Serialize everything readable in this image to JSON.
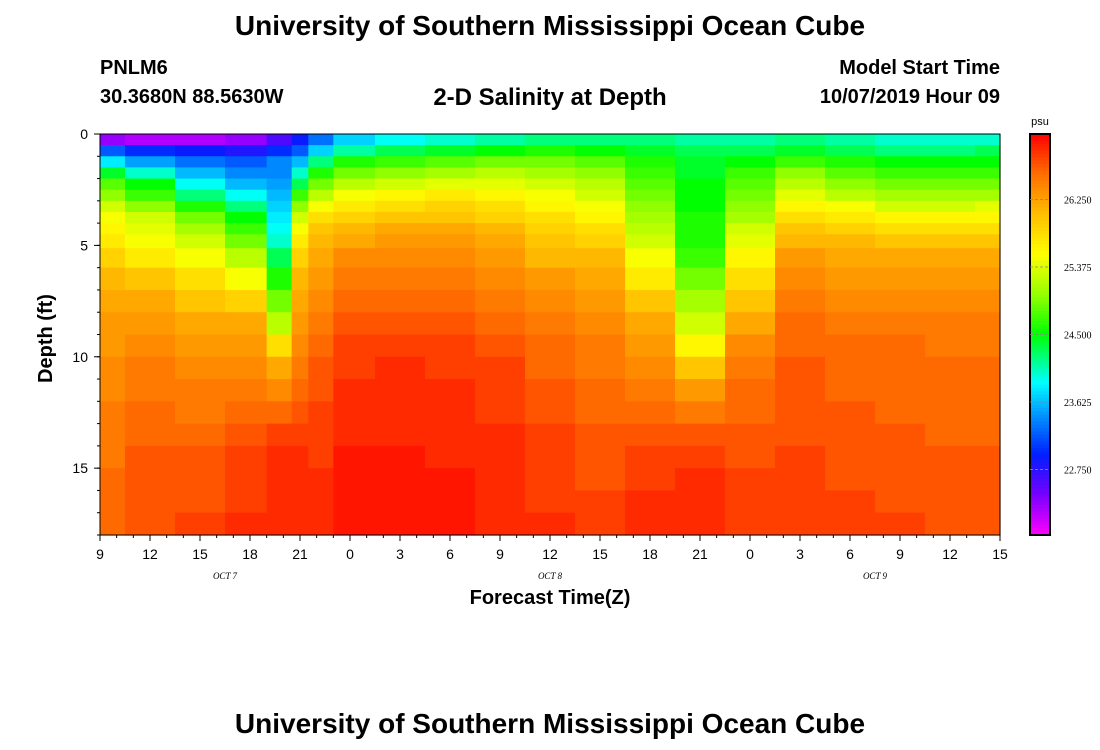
{
  "header": {
    "title_top": "University of Southern Mississippi Ocean Cube",
    "station_id": "PNLM6",
    "coordinates": "30.3680N 88.5630W",
    "plot_title": "2-D Salinity at Depth",
    "model_start_label": "Model Start Time",
    "model_start_value": "10/07/2019 Hour 09",
    "title_bottom": "University of Southern Mississippi Ocean Cube"
  },
  "chart_data": {
    "type": "heatmap",
    "title": "2-D Salinity at Depth",
    "xlabel": "Forecast Time(Z)",
    "ylabel": "Depth (ft)",
    "x_tick_labels": [
      "9",
      "12",
      "15",
      "18",
      "21",
      "0",
      "3",
      "6",
      "9",
      "12",
      "15",
      "18",
      "21",
      "0",
      "3",
      "6",
      "9",
      "12",
      "15"
    ],
    "x_range_hours": [
      0,
      54
    ],
    "x_tick_step_hours": 3,
    "date_labels": [
      {
        "text": "OCT 7",
        "hour": 7.5
      },
      {
        "text": "OCT 8",
        "hour": 27
      },
      {
        "text": "OCT 9",
        "hour": 46.5
      }
    ],
    "y_tick_labels": [
      "0",
      "5",
      "10",
      "15"
    ],
    "y_tick_values": [
      0,
      5,
      10,
      15
    ],
    "ylim": [
      0,
      18
    ],
    "colorbar": {
      "unit": "psu",
      "min": 21.9,
      "max": 27.1,
      "tick_values": [
        22.75,
        23.625,
        24.5,
        25.375,
        26.25
      ],
      "tick_labels": [
        "22.750",
        "23.625",
        "24.500",
        "25.375",
        "26.250"
      ]
    },
    "depth_levels_ft": [
      0.25,
      0.75,
      1.25,
      1.75,
      2.25,
      2.75,
      3.25,
      3.75,
      4.25,
      4.75,
      5.5,
      6.5,
      7.5,
      8.5,
      9.5,
      10.5,
      11.5,
      12.5,
      13.5,
      14.5,
      15.5,
      16.5,
      17.5
    ],
    "time_samples_hours": [
      0,
      3,
      6,
      9,
      11,
      12,
      13,
      15,
      18,
      21,
      24,
      27,
      30,
      33,
      36,
      39,
      42,
      45,
      48,
      51,
      54
    ],
    "salinity_columns": [
      [
        22.3,
        23.2,
        23.8,
        24.4,
        24.8,
        25.0,
        25.3,
        25.5,
        25.6,
        25.7,
        25.9,
        26.1,
        26.2,
        26.3,
        26.3,
        26.4,
        26.4,
        26.5,
        26.5,
        26.5,
        26.6,
        26.6,
        26.6
      ],
      [
        22.2,
        23.0,
        23.5,
        24.0,
        24.5,
        24.7,
        25.0,
        25.3,
        25.4,
        25.5,
        25.7,
        26.0,
        26.2,
        26.3,
        26.4,
        26.5,
        26.5,
        26.6,
        26.6,
        26.7,
        26.7,
        26.7,
        26.7
      ],
      [
        22.2,
        22.9,
        23.3,
        23.6,
        23.9,
        24.2,
        24.6,
        24.9,
        25.1,
        25.3,
        25.5,
        25.8,
        26.0,
        26.2,
        26.3,
        26.4,
        26.5,
        26.5,
        26.6,
        26.7,
        26.7,
        26.7,
        26.8
      ],
      [
        22.3,
        22.8,
        23.2,
        23.4,
        23.6,
        23.9,
        24.2,
        24.5,
        24.7,
        24.9,
        25.2,
        25.5,
        25.9,
        26.2,
        26.3,
        26.4,
        26.5,
        26.6,
        26.7,
        26.8,
        26.8,
        26.8,
        26.9
      ],
      [
        22.6,
        23.0,
        23.4,
        23.4,
        23.5,
        23.6,
        23.7,
        23.8,
        23.9,
        24.0,
        24.3,
        24.6,
        24.9,
        25.2,
        25.8,
        26.2,
        26.4,
        26.6,
        26.8,
        26.9,
        26.9,
        26.9,
        26.9
      ],
      [
        22.9,
        23.2,
        23.6,
        24.0,
        24.3,
        24.7,
        25.0,
        25.3,
        25.5,
        25.7,
        25.9,
        26.1,
        26.2,
        26.3,
        26.4,
        26.5,
        26.6,
        26.7,
        26.8,
        26.9,
        26.9,
        26.9,
        26.9
      ],
      [
        23.3,
        23.7,
        24.2,
        24.6,
        24.9,
        25.2,
        25.5,
        25.8,
        26.0,
        26.1,
        26.2,
        26.3,
        26.4,
        26.5,
        26.6,
        26.7,
        26.7,
        26.8,
        26.8,
        26.8,
        26.9,
        26.9,
        26.9
      ],
      [
        23.7,
        24.1,
        24.6,
        24.9,
        25.2,
        25.5,
        25.7,
        25.9,
        26.1,
        26.2,
        26.4,
        26.5,
        26.6,
        26.7,
        26.8,
        26.8,
        26.9,
        26.9,
        26.9,
        27.0,
        27.0,
        27.0,
        27.0
      ],
      [
        23.9,
        24.3,
        24.7,
        25.0,
        25.3,
        25.6,
        25.8,
        26.0,
        26.2,
        26.3,
        26.4,
        26.5,
        26.6,
        26.7,
        26.8,
        26.9,
        26.9,
        26.9,
        26.9,
        27.0,
        27.0,
        27.0,
        27.0
      ],
      [
        24.0,
        24.4,
        24.8,
        25.1,
        25.4,
        25.7,
        25.9,
        26.0,
        26.2,
        26.3,
        26.4,
        26.5,
        26.6,
        26.7,
        26.8,
        26.8,
        26.9,
        26.9,
        26.9,
        26.9,
        27.0,
        27.0,
        27.0
      ],
      [
        24.1,
        24.5,
        24.9,
        25.2,
        25.4,
        25.6,
        25.8,
        25.9,
        26.1,
        26.2,
        26.3,
        26.4,
        26.5,
        26.6,
        26.7,
        26.8,
        26.8,
        26.8,
        26.9,
        26.9,
        26.9,
        26.9,
        26.9
      ],
      [
        24.2,
        24.6,
        24.9,
        25.1,
        25.3,
        25.5,
        25.6,
        25.8,
        25.9,
        26.0,
        26.1,
        26.3,
        26.4,
        26.5,
        26.6,
        26.6,
        26.7,
        26.7,
        26.8,
        26.8,
        26.8,
        26.8,
        26.9
      ],
      [
        24.2,
        24.5,
        24.8,
        25.0,
        25.2,
        25.3,
        25.5,
        25.6,
        25.8,
        25.9,
        26.1,
        26.2,
        26.3,
        26.4,
        26.5,
        26.5,
        26.6,
        26.6,
        26.7,
        26.7,
        26.7,
        26.8,
        26.8
      ],
      [
        24.2,
        24.4,
        24.6,
        24.7,
        24.8,
        24.9,
        25.0,
        25.1,
        25.2,
        25.3,
        25.5,
        25.7,
        26.0,
        26.2,
        26.3,
        26.4,
        26.5,
        26.6,
        26.7,
        26.8,
        26.8,
        26.9,
        26.9
      ],
      [
        24.1,
        24.3,
        24.4,
        24.4,
        24.5,
        24.5,
        24.5,
        24.6,
        24.6,
        24.6,
        24.7,
        24.9,
        25.1,
        25.3,
        25.6,
        26.0,
        26.3,
        26.5,
        26.7,
        26.8,
        26.9,
        26.9,
        26.9
      ],
      [
        24.1,
        24.3,
        24.5,
        24.7,
        24.8,
        24.9,
        25.0,
        25.1,
        25.3,
        25.4,
        25.6,
        25.8,
        26.0,
        26.2,
        26.4,
        26.5,
        26.6,
        26.6,
        26.7,
        26.7,
        26.8,
        26.8,
        26.8
      ],
      [
        24.2,
        24.4,
        24.7,
        25.0,
        25.2,
        25.4,
        25.6,
        25.8,
        26.0,
        26.1,
        26.3,
        26.4,
        26.5,
        26.6,
        26.6,
        26.7,
        26.7,
        26.7,
        26.7,
        26.8,
        26.8,
        26.8,
        26.8
      ],
      [
        24.1,
        24.3,
        24.6,
        24.8,
        25.0,
        25.2,
        25.5,
        25.7,
        25.9,
        26.1,
        26.2,
        26.3,
        26.4,
        26.5,
        26.6,
        26.6,
        26.6,
        26.7,
        26.7,
        26.7,
        26.7,
        26.8,
        26.8
      ],
      [
        24.0,
        24.2,
        24.5,
        24.7,
        24.9,
        25.1,
        25.3,
        25.6,
        25.8,
        26.0,
        26.2,
        26.3,
        26.4,
        26.5,
        26.6,
        26.6,
        26.6,
        26.6,
        26.7,
        26.7,
        26.7,
        26.7,
        26.8
      ],
      [
        24.0,
        24.2,
        24.5,
        24.7,
        24.9,
        25.1,
        25.3,
        25.6,
        25.8,
        26.0,
        26.2,
        26.3,
        26.4,
        26.5,
        26.5,
        26.6,
        26.6,
        26.6,
        26.6,
        26.7,
        26.7,
        26.7,
        26.7
      ],
      [
        24.0,
        24.3,
        24.5,
        24.7,
        24.9,
        25.1,
        25.4,
        25.6,
        25.8,
        26.0,
        26.2,
        26.3,
        26.4,
        26.5,
        26.5,
        26.6,
        26.6,
        26.6,
        26.6,
        26.7,
        26.7,
        26.7,
        26.7
      ]
    ]
  }
}
